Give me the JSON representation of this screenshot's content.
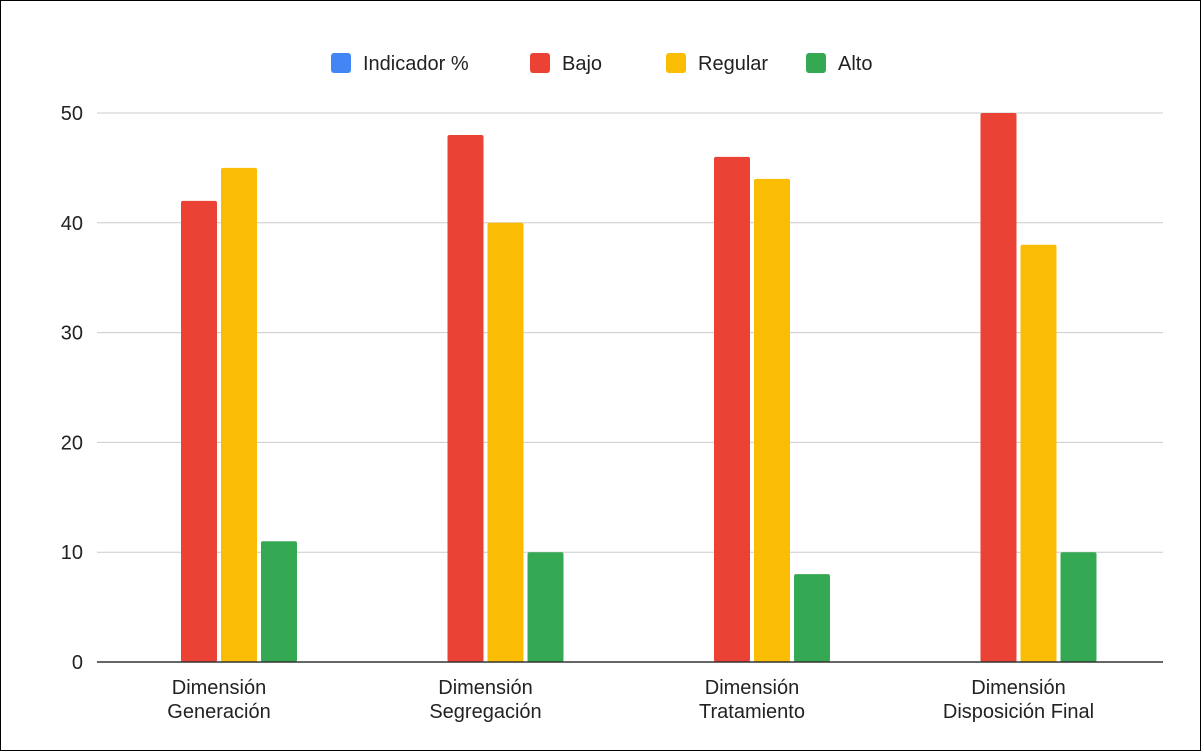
{
  "chart_data": {
    "type": "bar",
    "title": "",
    "xlabel": "",
    "ylabel": "",
    "ylim": [
      0,
      50
    ],
    "yticks": [
      0,
      10,
      20,
      30,
      40,
      50
    ],
    "grid": true,
    "legend_position": "top-center",
    "categories": [
      [
        "Dimensión",
        "Generación"
      ],
      [
        "Dimensión",
        "Segregación"
      ],
      [
        "Dimensión",
        "Tratamiento"
      ],
      [
        "Dimensión",
        "Disposición Final"
      ]
    ],
    "series": [
      {
        "name": "Indicador %",
        "color": "#4285f4",
        "values": [
          0,
          0,
          0,
          0
        ]
      },
      {
        "name": "Bajo",
        "color": "#ea4335",
        "values": [
          42,
          48,
          46,
          50
        ]
      },
      {
        "name": "Regular",
        "color": "#fbbc04",
        "values": [
          45,
          40,
          44,
          38
        ]
      },
      {
        "name": "Alto",
        "color": "#34a853",
        "values": [
          11,
          10,
          8,
          10
        ]
      }
    ],
    "gridline_color": "#cccccc",
    "axis_color": "#333333"
  }
}
